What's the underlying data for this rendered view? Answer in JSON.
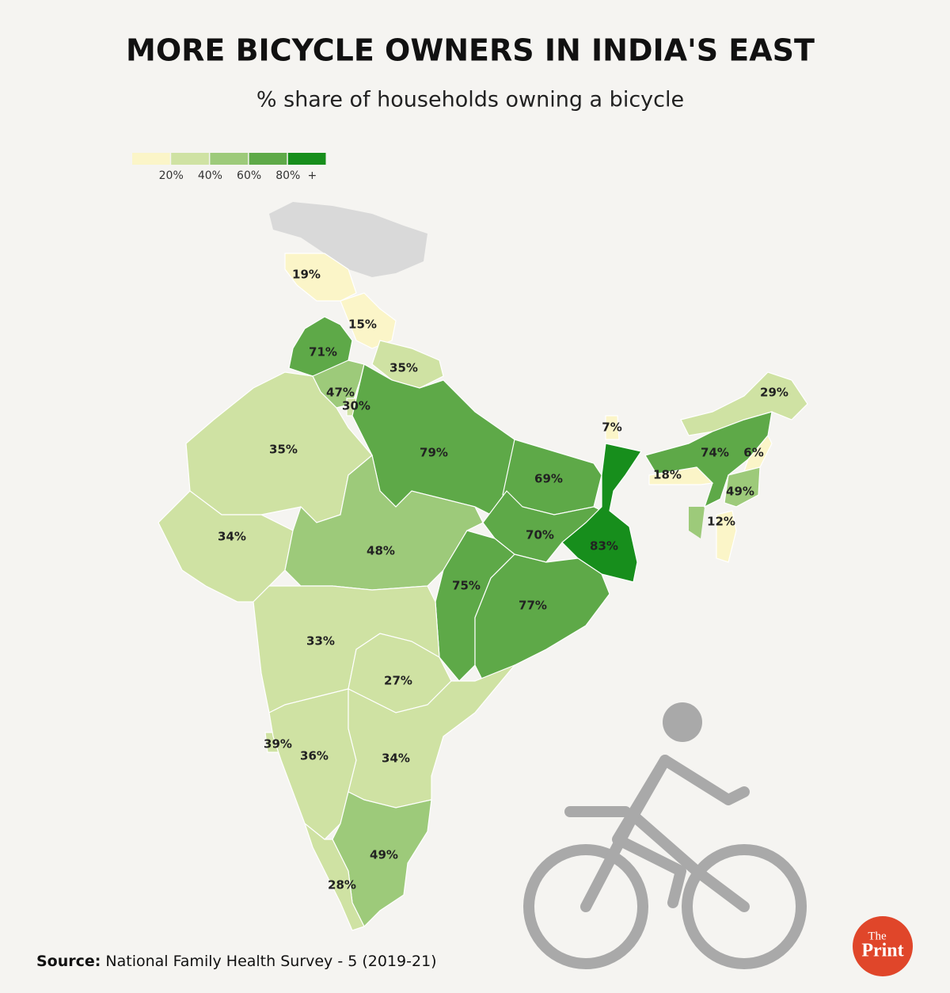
{
  "title": "MORE BICYCLE OWNERS IN INDIA'S EAST",
  "subtitle": "% share of households owning a bicycle",
  "legend": {
    "colors": [
      "#fbf5c8",
      "#cfe2a3",
      "#9dca7a",
      "#5ea948",
      "#178e1c"
    ],
    "ticks": [
      {
        "value": 20,
        "label": "20%"
      },
      {
        "value": 40,
        "label": "40%"
      },
      {
        "value": 60,
        "label": "60%"
      },
      {
        "value": 80,
        "label": "80%"
      }
    ],
    "open_end": "+"
  },
  "regions": {
    "values": [
      19,
      15,
      71,
      35,
      47,
      30,
      35,
      79,
      69,
      7,
      29,
      74,
      6,
      18,
      49,
      12,
      34,
      48,
      70,
      83,
      75,
      77,
      33,
      27,
      39,
      36,
      34,
      49,
      28
    ],
    "value_labels": [
      "19%",
      "15%",
      "71%",
      "35%",
      "47%",
      "30%",
      "35%",
      "79%",
      "69%",
      "7%",
      "29%",
      "74%",
      "6%",
      "18%",
      "49%",
      "12%",
      "34%",
      "48%",
      "70%",
      "83%",
      "75%",
      "77%",
      "33%",
      "27%",
      "39%",
      "36%",
      "34%",
      "49%",
      "28%"
    ]
  },
  "source": {
    "label": "Source:",
    "text": "National Family Health Survey - 5 (2019-21)"
  },
  "logo": {
    "top": "The",
    "bottom": "Print"
  }
}
